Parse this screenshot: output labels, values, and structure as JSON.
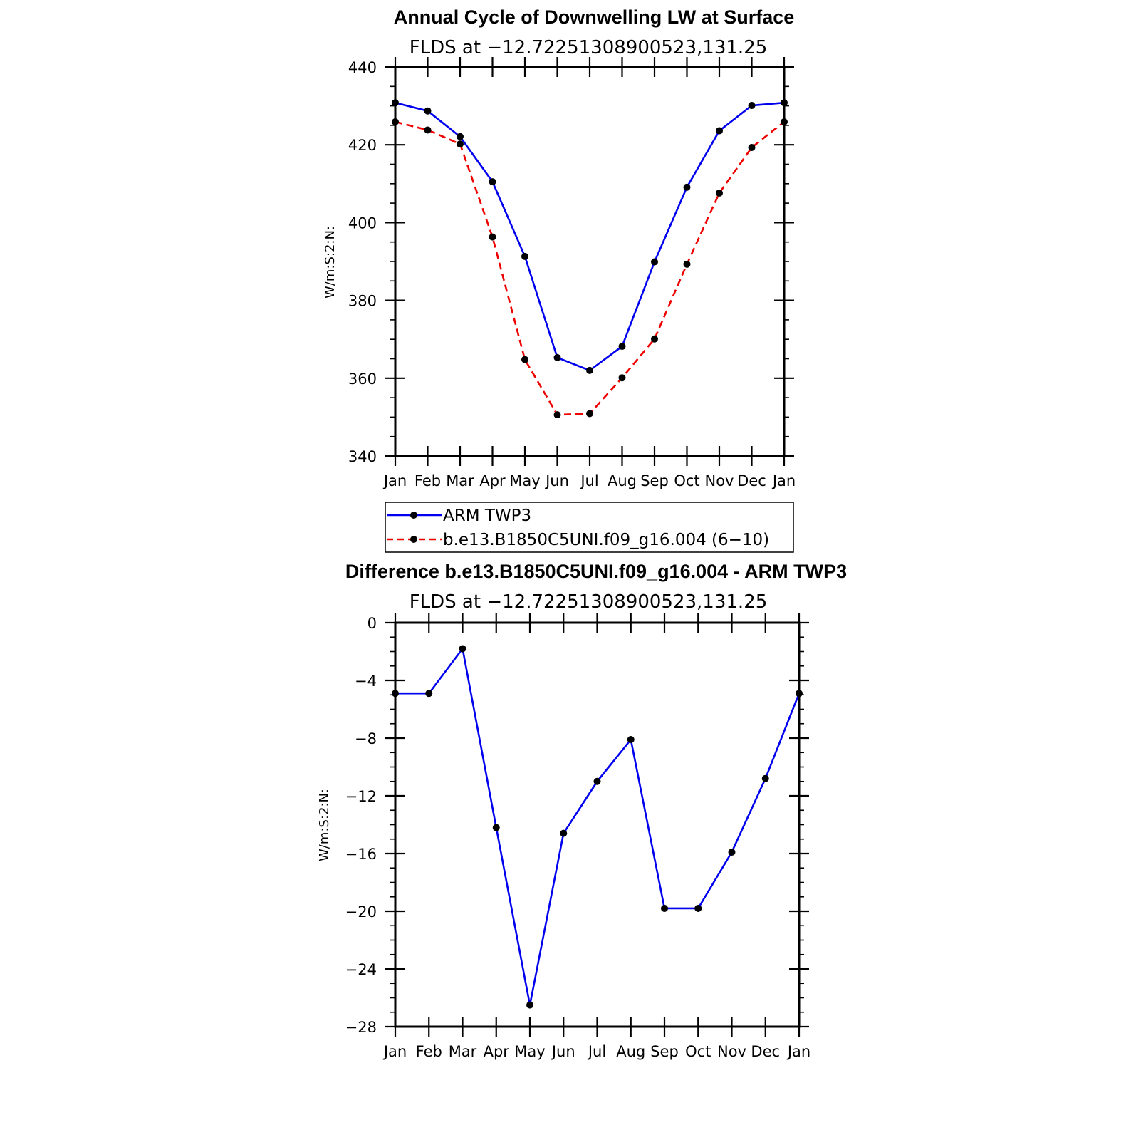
{
  "chart_data": [
    {
      "type": "line",
      "title": "Annual Cycle of Downwelling LW at Surface",
      "subtitle": "FLDS at −12.72251308900523,131.25",
      "ylabel": "W/m:S:2:N:",
      "xlabel": "",
      "ylim": [
        340,
        440
      ],
      "yticks": [
        340,
        360,
        380,
        400,
        420,
        440
      ],
      "ytick_labels": [
        "340",
        "360",
        "380",
        "400",
        "420",
        "440"
      ],
      "categories": [
        "Jan",
        "Feb",
        "Mar",
        "Apr",
        "May",
        "Jun",
        "Jul",
        "Aug",
        "Sep",
        "Oct",
        "Nov",
        "Dec",
        "Jan"
      ],
      "grid": false,
      "legend_position": "bottom",
      "series": [
        {
          "name": "ARM TWP3",
          "color": "#0000ee",
          "dash": "solid",
          "values": [
            430.8,
            428.7,
            422.1,
            410.5,
            391.3,
            365.3,
            362.0,
            368.2,
            389.9,
            409.1,
            423.6,
            430.1,
            430.8
          ]
        },
        {
          "name": "b.e13.B1850C5UNI.f09_g16.004 (6−10)",
          "color": "#ee0000",
          "dash": "dashed",
          "values": [
            425.9,
            423.8,
            420.2,
            396.3,
            364.8,
            350.6,
            350.9,
            360.1,
            370.1,
            389.3,
            407.6,
            419.3,
            425.9
          ]
        }
      ]
    },
    {
      "type": "line",
      "title": "Difference b.e13.B1850C5UNI.f09_g16.004 - ARM TWP3",
      "subtitle": "FLDS at −12.72251308900523,131.25",
      "ylabel": "W/m:S:2:N:",
      "xlabel": "",
      "ylim": [
        -28,
        0
      ],
      "yticks": [
        -28,
        -24,
        -20,
        -16,
        -12,
        -8,
        -4,
        0
      ],
      "ytick_labels": [
        "−28",
        "−24",
        "−20",
        "−16",
        "−12",
        "−8",
        "−4",
        "0"
      ],
      "categories": [
        "Jan",
        "Feb",
        "Mar",
        "Apr",
        "May",
        "Jun",
        "Jul",
        "Aug",
        "Sep",
        "Oct",
        "Nov",
        "Dec",
        "Jan"
      ],
      "grid": false,
      "series": [
        {
          "name": "Difference",
          "color": "#0000ee",
          "dash": "solid",
          "values": [
            -4.9,
            -4.9,
            -1.8,
            -14.2,
            -26.5,
            -14.6,
            -11.0,
            -8.1,
            -19.8,
            -19.8,
            -15.9,
            -10.8,
            -4.9
          ]
        }
      ]
    }
  ]
}
